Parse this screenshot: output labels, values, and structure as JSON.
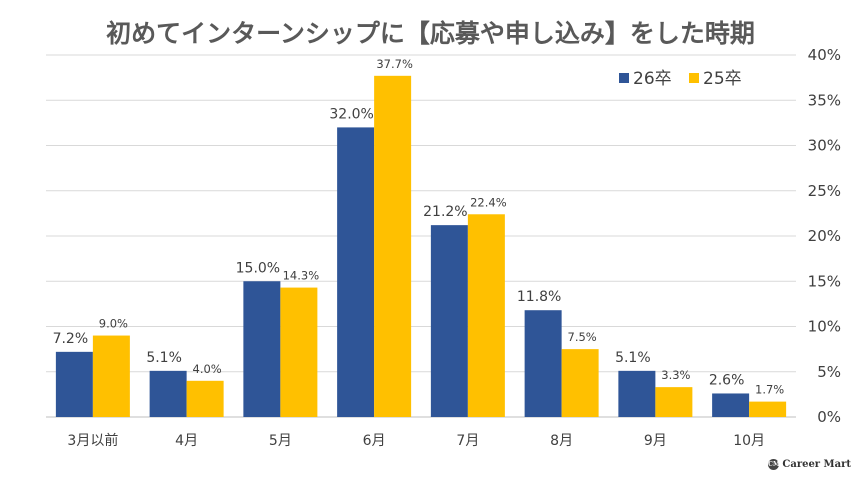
{
  "chart_data": {
    "type": "bar",
    "title": "初めてインターンシップに【応募や申し込み】をした時期",
    "categories": [
      "3月以前",
      "4月",
      "5月",
      "6月",
      "7月",
      "8月",
      "9月",
      "10月"
    ],
    "series": [
      {
        "name": "26卒",
        "color": "#2F5597",
        "values": [
          7.2,
          5.1,
          15.0,
          32.0,
          21.2,
          11.8,
          5.1,
          2.6
        ]
      },
      {
        "name": "25卒",
        "color": "#FFC000",
        "values": [
          9.0,
          4.0,
          14.3,
          37.7,
          22.4,
          7.5,
          3.3,
          1.7
        ]
      }
    ],
    "data_labels": [
      [
        "7.2%",
        "5.1%",
        "15.0%",
        "32.0%",
        "21.2%",
        "11.8%",
        "5.1%",
        "2.6%"
      ],
      [
        "9.0%",
        "4.0%",
        "14.3%",
        "37.7%",
        "22.4%",
        "7.5%",
        "3.3%",
        "1.7%"
      ]
    ],
    "y_ticks": [
      "0%",
      "5%",
      "10%",
      "15%",
      "20%",
      "25%",
      "30%",
      "35%",
      "40%"
    ],
    "ylim": [
      0,
      40
    ],
    "yaxis_side": "right",
    "grid": true,
    "legend": "top-right"
  },
  "brand": {
    "icon": "career-mart-logo-icon",
    "text": "Career Mart"
  }
}
